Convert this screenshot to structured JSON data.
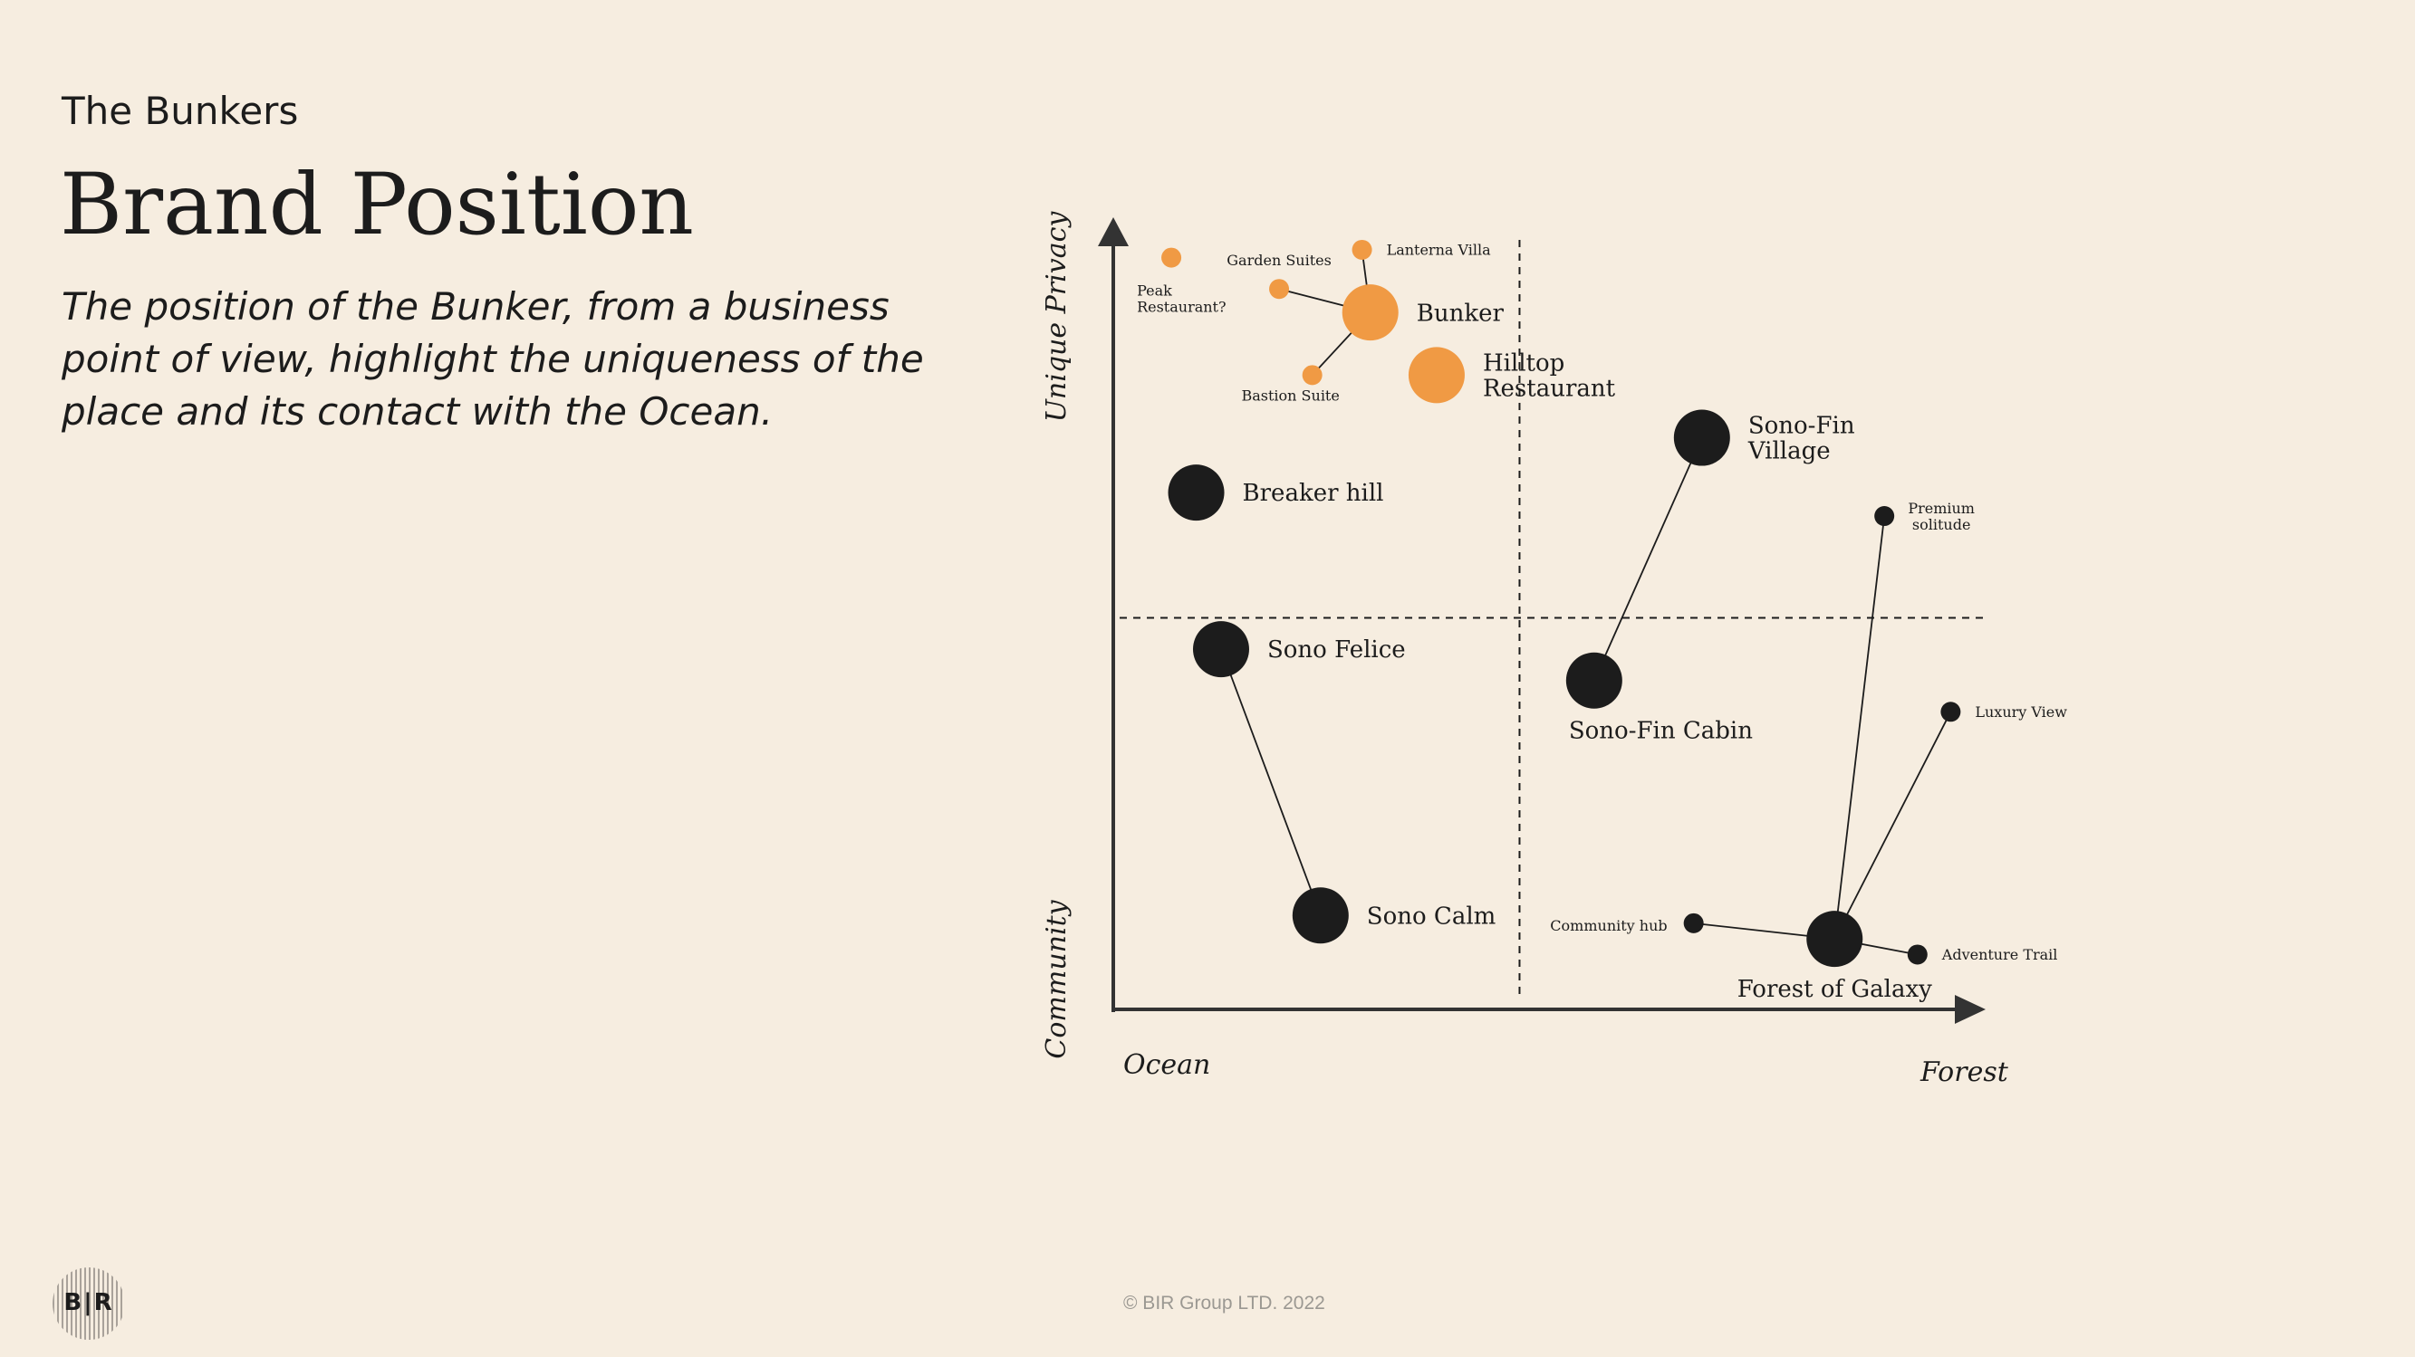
{
  "header": {
    "subtitle": "The Bunkers",
    "title": "Brand Position",
    "description": "The position of the Bunker, from a business point of view, highlight the uniqueness of the place and its contact with the Ocean."
  },
  "colors": {
    "background": "#f6ede0",
    "ink": "#1c1c1c",
    "accent": "#f09a44",
    "muted": "#9b9892"
  },
  "chart_data": {
    "type": "scatter",
    "axes": {
      "x_left_label": "Ocean",
      "x_right_label": "Forest",
      "y_top_label": "Unique Privacy",
      "y_bottom_label": "Community"
    },
    "points": [
      {
        "id": "bunker",
        "label": "Bunker",
        "x": 3.1,
        "y": 8.9,
        "size": "large",
        "color": "accent",
        "labelSide": "right"
      },
      {
        "id": "lanterna",
        "label": "Lanterna Villa",
        "x": 3.0,
        "y": 9.7,
        "size": "small",
        "color": "accent",
        "labelSide": "right"
      },
      {
        "id": "garden",
        "label": "Garden Suites",
        "x": 2.0,
        "y": 9.2,
        "size": "small",
        "color": "accent",
        "labelSide": "above-left"
      },
      {
        "id": "bastion",
        "label": "Bastion Suite",
        "x": 2.4,
        "y": 8.1,
        "size": "small",
        "color": "accent",
        "labelSide": "below-left"
      },
      {
        "id": "peak",
        "label": "Peak Restaurant?",
        "x": 0.7,
        "y": 9.6,
        "size": "small",
        "color": "accent",
        "labelSide": "below"
      },
      {
        "id": "hilltop",
        "label": "Hilltop Restaurant",
        "x": 3.9,
        "y": 8.1,
        "size": "large",
        "color": "accent",
        "labelSide": "right"
      },
      {
        "id": "breaker",
        "label": "Breaker hill",
        "x": 1.0,
        "y": 6.6,
        "size": "large",
        "color": "ink",
        "labelSide": "right"
      },
      {
        "id": "felice",
        "label": "Sono Felice",
        "x": 1.3,
        "y": 4.6,
        "size": "large",
        "color": "ink",
        "labelSide": "right"
      },
      {
        "id": "calm",
        "label": "Sono Calm",
        "x": 2.5,
        "y": 1.2,
        "size": "large",
        "color": "ink",
        "labelSide": "right"
      },
      {
        "id": "finvillage",
        "label": "Sono-Fin Village",
        "x": 7.1,
        "y": 7.3,
        "size": "large",
        "color": "ink",
        "labelSide": "right"
      },
      {
        "id": "fincabin",
        "label": "Sono-Fin Cabin",
        "x": 5.8,
        "y": 4.2,
        "size": "large",
        "color": "ink",
        "labelSide": "below"
      },
      {
        "id": "premium",
        "label": "Premium solitude",
        "x": 9.3,
        "y": 6.3,
        "size": "small",
        "color": "ink",
        "labelSide": "right"
      },
      {
        "id": "luxury",
        "label": "Luxury View",
        "x": 10.1,
        "y": 3.8,
        "size": "small",
        "color": "ink",
        "labelSide": "right"
      },
      {
        "id": "galaxy",
        "label": "Forest of Galaxy",
        "x": 8.7,
        "y": 0.9,
        "size": "large",
        "color": "ink",
        "labelSide": "below"
      },
      {
        "id": "community",
        "label": "Community hub",
        "x": 7.0,
        "y": 1.1,
        "size": "small",
        "color": "ink",
        "labelSide": "left"
      },
      {
        "id": "adventure",
        "label": "Adventure Trail",
        "x": 9.7,
        "y": 0.7,
        "size": "small",
        "color": "ink",
        "labelSide": "right"
      }
    ],
    "links": [
      [
        "bunker",
        "lanterna"
      ],
      [
        "bunker",
        "garden"
      ],
      [
        "bunker",
        "bastion"
      ],
      [
        "felice",
        "calm"
      ],
      [
        "finvillage",
        "fincabin"
      ],
      [
        "galaxy",
        "premium"
      ],
      [
        "galaxy",
        "luxury"
      ],
      [
        "galaxy",
        "community"
      ],
      [
        "galaxy",
        "adventure"
      ]
    ],
    "dividers": {
      "x": 4.9,
      "y": 5.0
    }
  },
  "footer": {
    "copyright": "© BIR Group LTD. 2022",
    "logo_text": "B|R"
  }
}
